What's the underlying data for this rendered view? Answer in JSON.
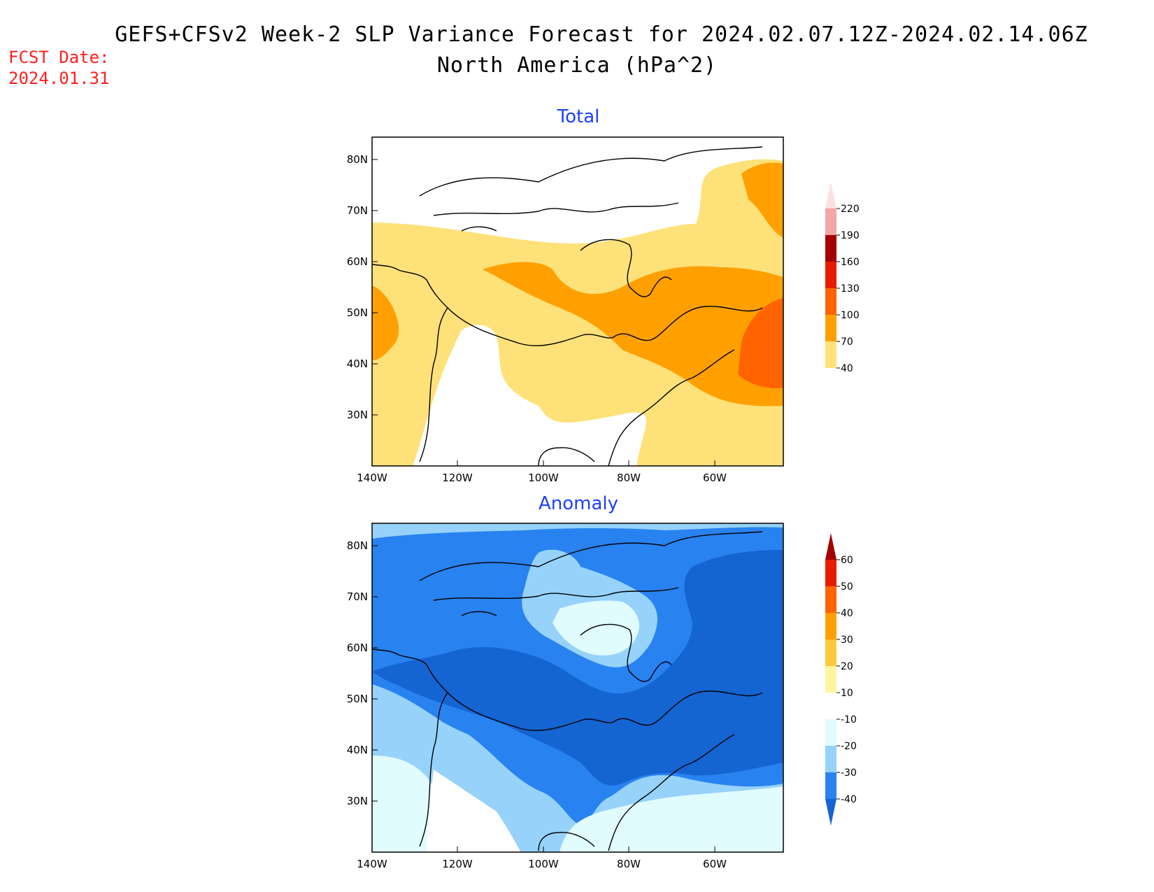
{
  "header": {
    "title_line1": "GEFS+CFSv2 Week-2 SLP Variance Forecast for 2024.02.07.12Z-2024.02.14.06Z",
    "title_line2": "North America (hPa^2)",
    "fcst_label": "FCST Date:",
    "fcst_value": "2024.01.31"
  },
  "panels": [
    {
      "id": "total",
      "title": "Total",
      "lat_labels": [
        "80N",
        "70N",
        "60N",
        "50N",
        "40N",
        "30N"
      ],
      "lon_labels": [
        "140W",
        "120W",
        "100W",
        "80W",
        "60W"
      ],
      "colorbar": {
        "labels": [
          "220",
          "190",
          "160",
          "130",
          "100",
          "70",
          "40"
        ],
        "colors": [
          "#ffe0e0",
          "#f4a6a6",
          "#a50000",
          "#e61e00",
          "#ff6400",
          "#ffa000",
          "#ffe17a"
        ]
      }
    },
    {
      "id": "anomaly",
      "title": "Anomaly",
      "lat_labels": [
        "80N",
        "70N",
        "60N",
        "50N",
        "40N",
        "30N"
      ],
      "lon_labels": [
        "140W",
        "120W",
        "100W",
        "80W",
        "60W"
      ],
      "colorbar": {
        "labels": [
          "60",
          "50",
          "40",
          "30",
          "20",
          "10",
          "-10",
          "-20",
          "-30",
          "-40"
        ],
        "colors": [
          "#a50000",
          "#e61e00",
          "#ff6400",
          "#ffa000",
          "#ffc83c",
          "#fff5a0",
          "#ffffff",
          "#e0fcff",
          "#96d2fa",
          "#2882f0",
          "#1464d2"
        ]
      }
    }
  ],
  "colors": {
    "total_40_70": "#ffe17a",
    "total_70_100": "#ffa000",
    "total_100_130": "#ff6400",
    "anom_m10_m20": "#e0fcff",
    "anom_m20_m30": "#96d2fa",
    "anom_m30_m40": "#2882f0",
    "anom_lt_m40": "#1464d2"
  }
}
